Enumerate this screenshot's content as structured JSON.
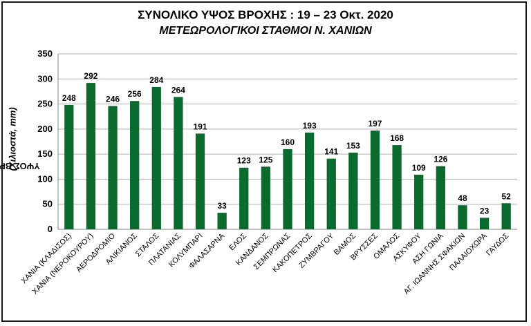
{
  "chart_data": {
    "type": "bar",
    "title": "ΣΥΝΟΛΙΚΟ ΥΨΟΣ ΒΡΟΧΗΣ  :  19 – 23 Οκτ. 2020",
    "subtitle": "ΜΕΤΕΩΡΟΛΟΓΙΚΟΙ ΣΤΑΘΜΟΙ  Ν. ΧΑΝΙΩΝ",
    "ylabel_main": "ΥΨΟΣ ΒΡΟΧΗΣ",
    "ylabel_unit": "(Χιλιοστά, mm)",
    "xlabel": "",
    "ylim": [
      0,
      350
    ],
    "yticks": [
      0,
      50,
      100,
      150,
      200,
      250,
      300,
      350
    ],
    "categories": [
      "ΧΑΝΙΑ (ΚΛΑΔΙΣΟΣ)",
      "ΧΑΝΙΑ (ΝΕΡΟΚΟΥΡΟΥ)",
      "ΑΕΡΟΔΡΟΜΙΟ",
      "ΑΛΙΚΙΑΝΟΣ",
      "ΣΤΑΛΟΣ",
      "ΠΛΑΤΑΝΙΑΣ",
      "ΚΟΛΥΜΠΑΡΙ",
      "ΦΑΛΑΣΑΡΝΑ",
      "ΕΛΟΣ",
      "ΚΑΝΔΑΝΟΣ",
      "ΣΕΜΠΡΩΝΑΣ",
      "ΚΑΚΟΠΕΤΡΟΣ",
      "ΖΥΜΒΡΑΓΟΥ",
      "ΒΑΜΟΣ",
      "ΒΡΥΣΣΕΣ",
      "ΟΜΑΛΟΣ",
      "ΑΣΚΥΦΟΥ",
      "ΑΣΗ ΓΩΝΙΑ",
      "ΑΓ. ΙΩΑΝΝΗΣ ΣΦΑΚΙΩΝ",
      "ΠΑΛΑΙΟΧΩΡΑ",
      "ΓΑΥΔΟΣ"
    ],
    "values": [
      248,
      292,
      246,
      256,
      284,
      264,
      191,
      33,
      123,
      125,
      160,
      193,
      141,
      153,
      197,
      168,
      109,
      126,
      48,
      23,
      52
    ],
    "bar_color": "#0b6a2e",
    "grid": "horizontal",
    "legend": "none"
  }
}
